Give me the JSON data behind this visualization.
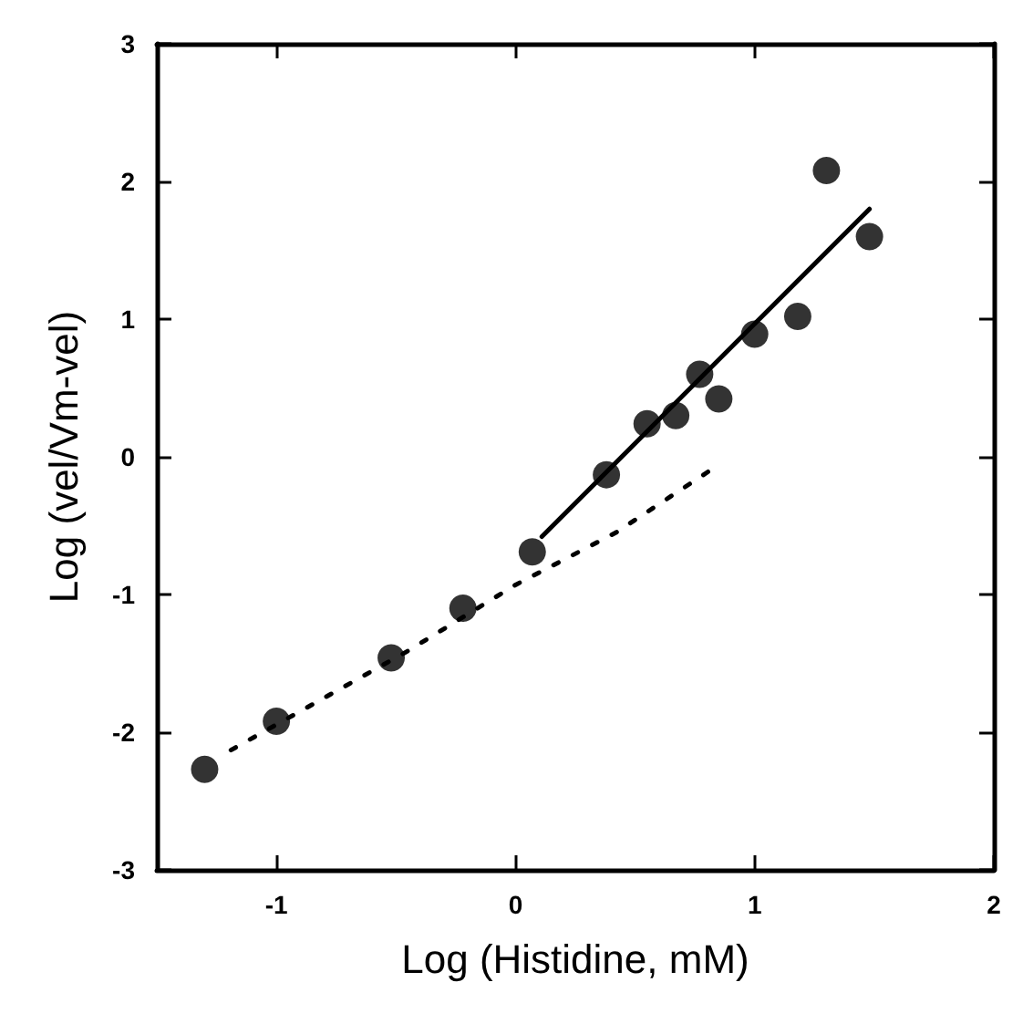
{
  "chart_data": {
    "type": "scatter",
    "xlabel": "Log (Histidine, mM)",
    "ylabel": "Log (vel/Vm-vel)",
    "xlim": [
      -1.5,
      2
    ],
    "ylim": [
      -3,
      3
    ],
    "xticks": [
      -1,
      0,
      1,
      2
    ],
    "yticks": [
      -3,
      -2,
      -1,
      0,
      1,
      2,
      3
    ],
    "grid": false,
    "marker": "circle",
    "series": [
      {
        "color": "#000000",
        "x": [
          -1.3,
          -1.0,
          -0.52,
          -0.22,
          0.07,
          0.38,
          0.55,
          0.67,
          0.77,
          0.85,
          1.0,
          1.18,
          1.3,
          1.48
        ],
        "values": [
          -2.27,
          -1.92,
          -1.46,
          -1.1,
          -0.69,
          -0.13,
          0.24,
          0.3,
          0.6,
          0.42,
          0.89,
          1.02,
          2.08,
          1.6
        ]
      },
      {
        "type": "line",
        "color": "#000000",
        "line_style": "solid",
        "marker": "none",
        "x": [
          0.11,
          1.48
        ],
        "values": [
          -0.58,
          1.8
        ]
      },
      {
        "type": "line",
        "color": "#000000",
        "line_style": "dotted",
        "marker": "none",
        "x": [
          -1.19,
          -0.82,
          -0.45,
          0,
          0.42,
          0.83
        ],
        "values": [
          -2.13,
          -1.77,
          -1.41,
          -0.93,
          -0.55,
          -0.08
        ]
      }
    ]
  }
}
